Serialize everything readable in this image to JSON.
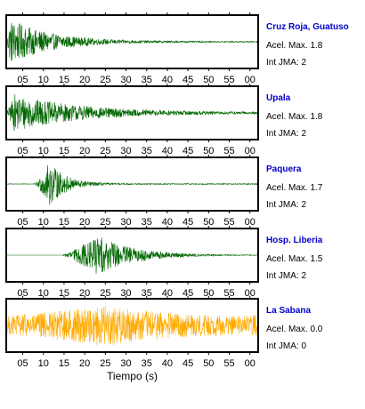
{
  "chart_data": {
    "type": "line",
    "x_tick_labels": [
      "05",
      "10",
      "15",
      "20",
      "25",
      "30",
      "35",
      "40",
      "45",
      "50",
      "55",
      "00"
    ],
    "xlabel": "Tiempo (s)",
    "grid": false,
    "series": [
      {
        "name": "Cruz Roja, Guatuso",
        "accel_label": "Acel. Max. 1.8",
        "intensity_label": "Int JMA: 2",
        "color": "#006600",
        "onset_s": 1,
        "peak_s": 2,
        "peak_amp": 0.9,
        "decay_s": 10,
        "noise": 0.02
      },
      {
        "name": "Upala",
        "accel_label": "Acel. Max. 1.8",
        "intensity_label": "Int JMA: 2",
        "color": "#006600",
        "onset_s": 1,
        "peak_s": 3,
        "peak_amp": 0.75,
        "decay_s": 16,
        "noise": 0.03
      },
      {
        "name": "Paquera",
        "accel_label": "Acel. Max. 1.7",
        "intensity_label": "Int JMA: 2",
        "color": "#006600",
        "onset_s": 8,
        "peak_s": 11.5,
        "peak_amp": 0.9,
        "decay_s": 4,
        "noise": 0.02
      },
      {
        "name": "Hosp. Liberia",
        "accel_label": "Acel. Max. 1.5",
        "intensity_label": "Int JMA: 2",
        "color": "#006600",
        "onset_s": 14.5,
        "peak_s": 23,
        "peak_amp": 0.8,
        "decay_s": 9,
        "noise": 0.0
      },
      {
        "name": "La Sabana",
        "accel_label": "Acel. Max. 0.0",
        "intensity_label": "Int JMA: 0",
        "color": "#ffaa00",
        "onset_s": 0,
        "peak_s": 25,
        "peak_amp": 0.85,
        "decay_s": 14,
        "noise": 0.35
      }
    ]
  }
}
